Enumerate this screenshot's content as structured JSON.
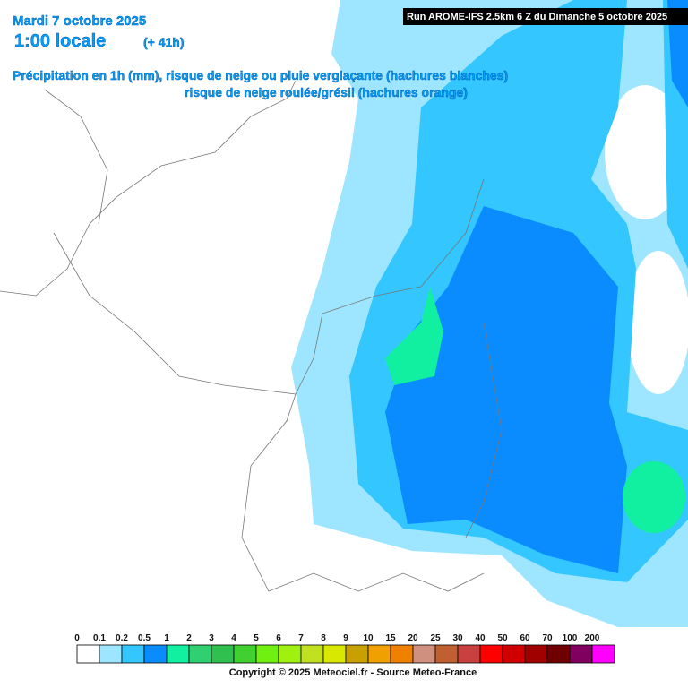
{
  "header": {
    "date": "Mardi 7 octobre 2025",
    "time": "1:00 locale",
    "lead": "(+ 41h)",
    "description_1": "Précipitation en 1h (mm), risque de neige ou pluie verglaçante (hachures blanches)",
    "description_2": "risque de neige roulée/grésil (hachures orange)",
    "run": "Run AROME-IFS 2.5km 6 Z du Dimanche 5 octobre 2025"
  },
  "legend": {
    "labels": [
      0,
      0.1,
      0.2,
      0.5,
      1,
      2,
      3,
      4,
      5,
      6,
      7,
      8,
      9,
      10,
      15,
      20,
      25,
      30,
      40,
      50,
      60,
      70,
      100,
      200
    ],
    "colors": [
      "#ffffff",
      "#9ee6ff",
      "#33c6ff",
      "#0a8cff",
      "#10f0a0",
      "#30d070",
      "#30c050",
      "#40d030",
      "#70f010",
      "#a0f010",
      "#c0e020",
      "#d8e800",
      "#c8a000",
      "#f0a000",
      "#f08000",
      "#d09080",
      "#c06030",
      "#c84040",
      "#ff0000",
      "#d00000",
      "#a00000",
      "#700000",
      "#800060",
      "#ff00ff"
    ]
  },
  "footer": {
    "copyright": "Copyright © 2025 Meteociel.fr - Source Meteo-France"
  }
}
